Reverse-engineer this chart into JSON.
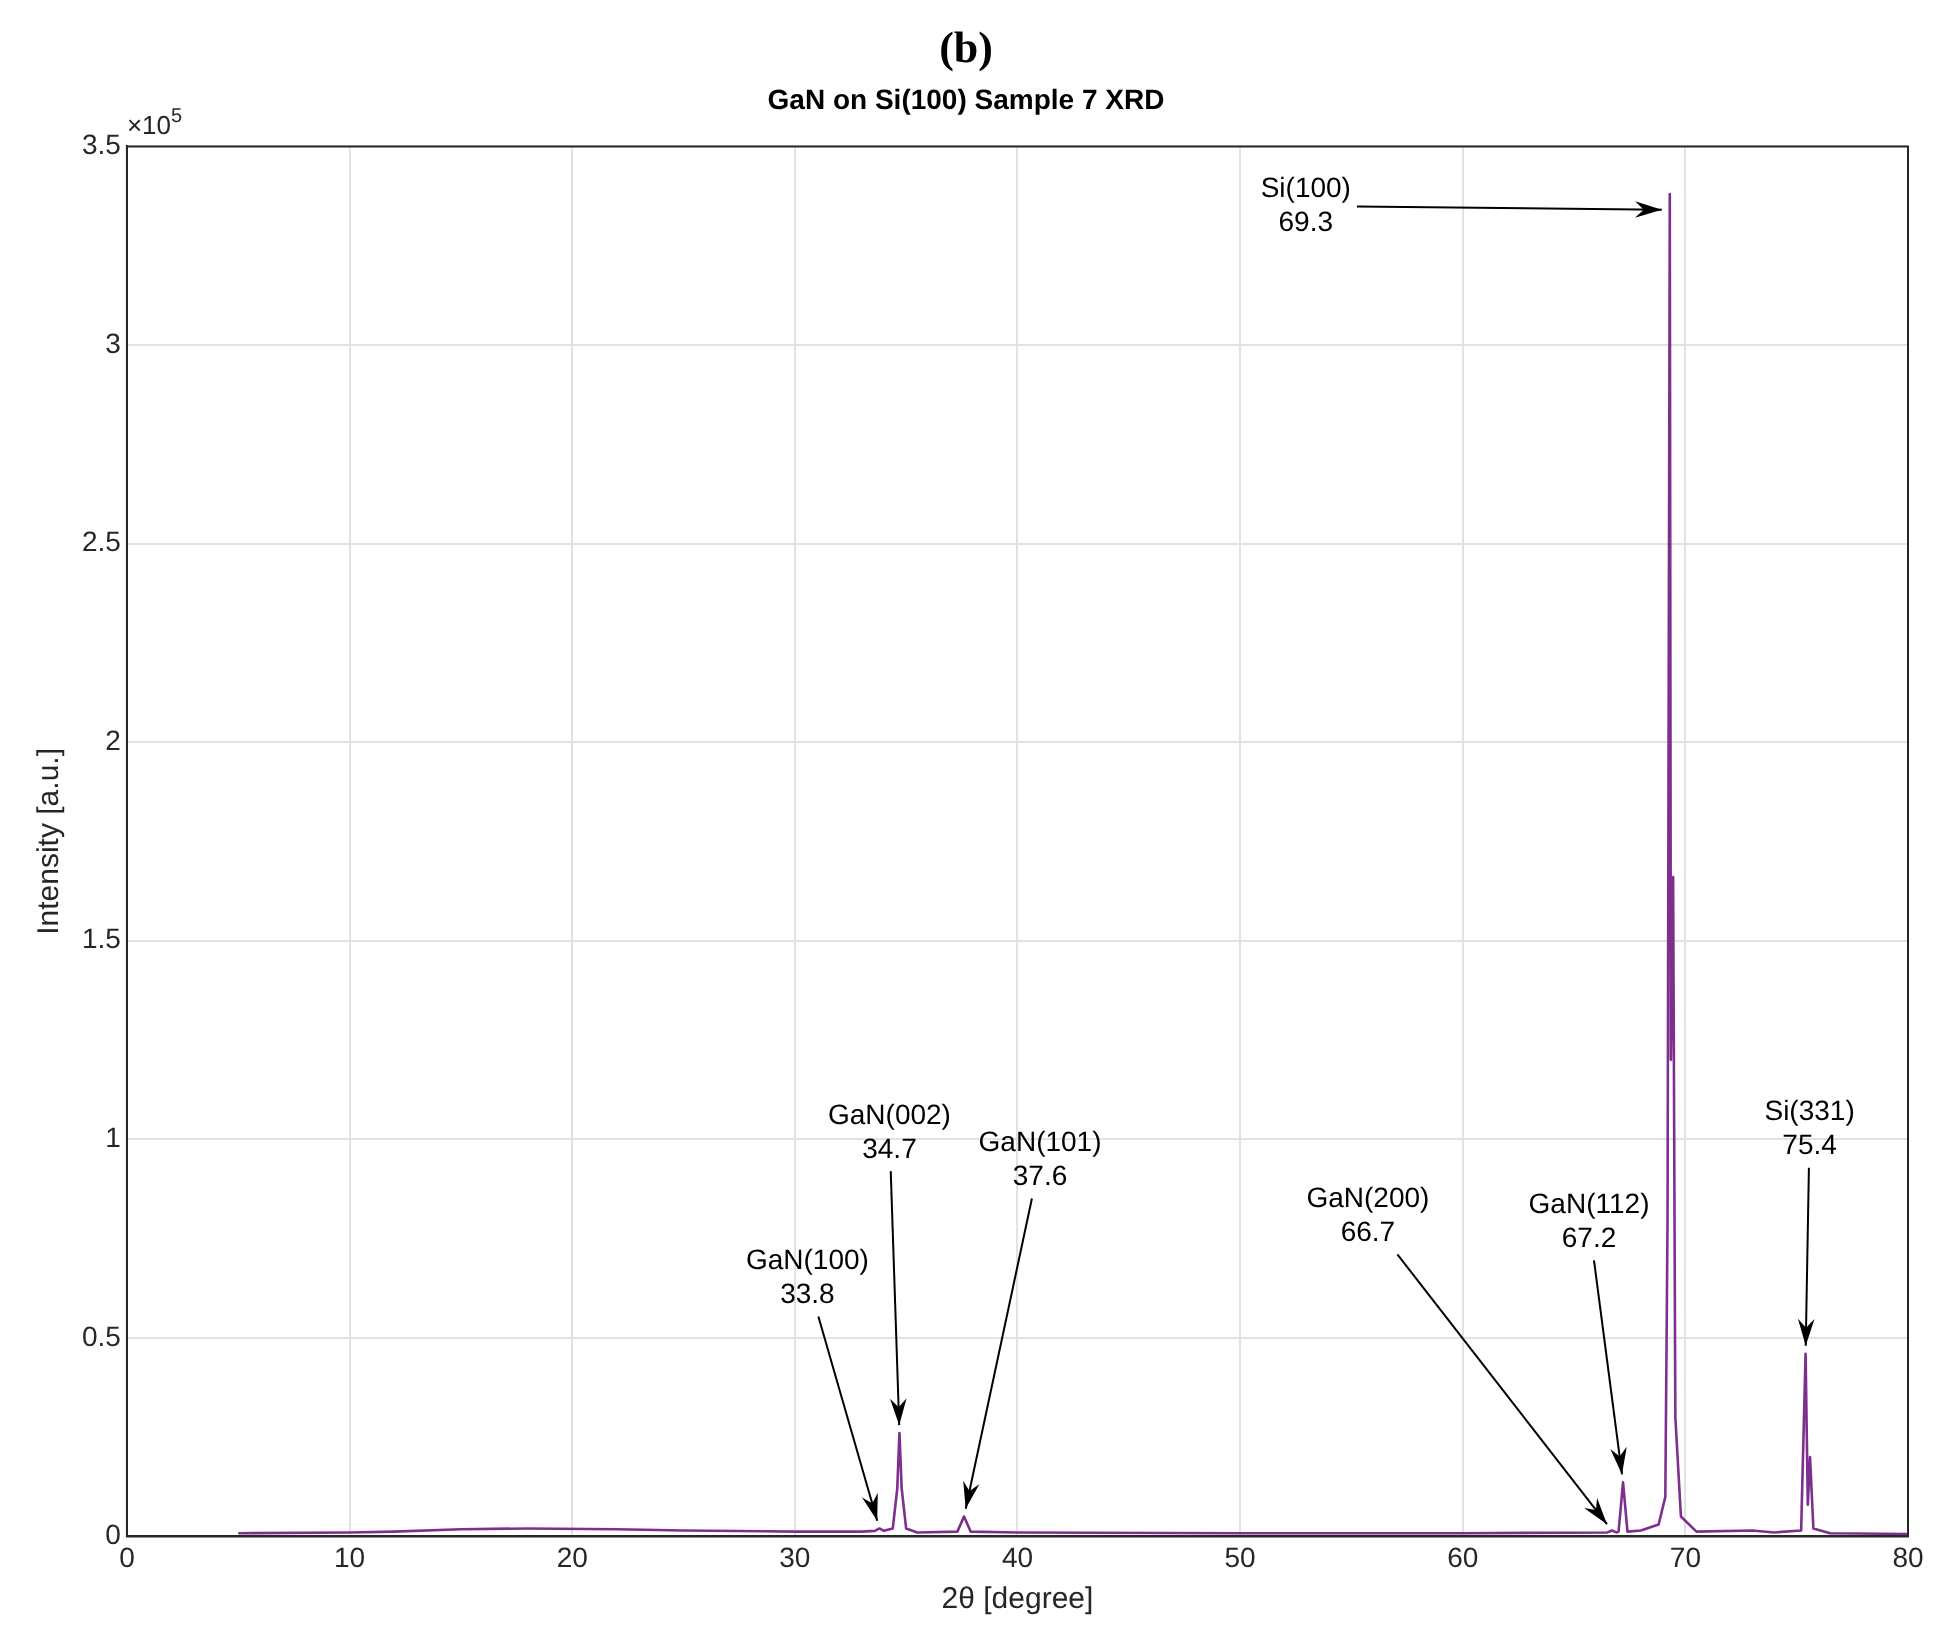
{
  "chart_data": {
    "type": "line",
    "title": "(b)",
    "subtitle": "GaN on Si(100) Sample 7 XRD",
    "xlabel": "2θ [degree]",
    "ylabel": "Intensity [a.u.]",
    "x": [
      5,
      10,
      12,
      15,
      18,
      22,
      25,
      30,
      33,
      33.6,
      33.8,
      34.0,
      34.4,
      34.6,
      34.7,
      34.8,
      35.0,
      35.5,
      37.3,
      37.6,
      37.9,
      40,
      50,
      60,
      66.5,
      66.7,
      66.9,
      67.0,
      67.2,
      67.4,
      68.0,
      68.8,
      69.1,
      69.2,
      69.3,
      69.35,
      69.45,
      69.55,
      69.8,
      70.5,
      73,
      74,
      75.2,
      75.4,
      75.5,
      75.6,
      75.75,
      76.5,
      80
    ],
    "series": [
      {
        "color": "#7e2f8e",
        "values": [
          0.008,
          0.01,
          0.012,
          0.018,
          0.02,
          0.018,
          0.015,
          0.012,
          0.012,
          0.014,
          0.02,
          0.014,
          0.02,
          0.12,
          0.26,
          0.12,
          0.02,
          0.01,
          0.012,
          0.05,
          0.012,
          0.01,
          0.008,
          0.008,
          0.01,
          0.015,
          0.01,
          0.012,
          0.136,
          0.012,
          0.015,
          0.03,
          0.1,
          0.8,
          3.38,
          1.2,
          1.66,
          0.3,
          0.05,
          0.012,
          0.015,
          0.01,
          0.015,
          0.46,
          0.08,
          0.2,
          0.02,
          0.008,
          0.006
        ]
      }
    ],
    "xlim": [
      0,
      80
    ],
    "xticks": [
      0,
      10,
      20,
      30,
      40,
      50,
      60,
      70,
      80
    ],
    "ylim": [
      0,
      3.5
    ],
    "yticks": [
      0,
      0.5,
      1,
      1.5,
      2,
      2.5,
      3,
      3.5
    ],
    "grid": true,
    "marker": "none",
    "line_style": "solid",
    "annotations": [
      "×10$^{5}$",
      {
        "text": "GaN(100)\n33.8",
        "x": 33.8,
        "y": 0.02
      },
      {
        "text": "GaN(002)\n34.7",
        "x": 34.7,
        "y": 0.26
      },
      {
        "text": "GaN(101)\n37.6",
        "x": 37.6,
        "y": 0.05
      },
      {
        "text": "GaN(200)\n66.7",
        "x": 66.7,
        "y": 0.015
      },
      {
        "text": "GaN(112)\n67.2",
        "x": 67.2,
        "y": 0.136
      },
      {
        "text": "Si(100)\n69.3",
        "x": 69.3,
        "y": 3.34
      },
      {
        "text": "Si(331)\n75.4",
        "x": 75.4,
        "y": 0.46
      }
    ]
  }
}
